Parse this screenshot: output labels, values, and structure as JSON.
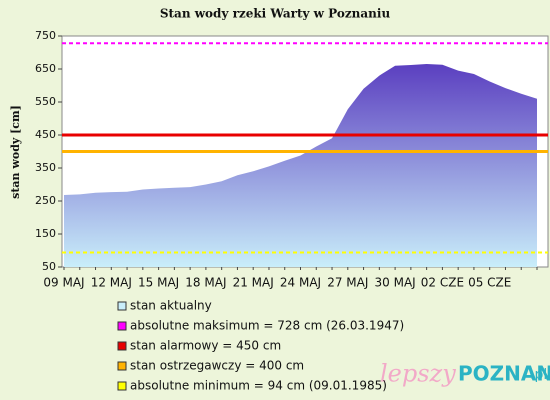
{
  "chart_data": {
    "type": "area",
    "title": "Stan wody rzeki Warty w Poznaniu",
    "y_label": "stan wody [cm]",
    "categories": [
      "09 MAJ",
      null,
      null,
      "12 MAJ",
      null,
      null,
      "15 MAJ",
      null,
      null,
      "18 MAJ",
      null,
      null,
      "21 MAJ",
      null,
      null,
      "24 MAJ",
      null,
      null,
      "27 MAJ",
      null,
      null,
      "30 MAJ",
      null,
      null,
      "02 CZE",
      null,
      null,
      "05 CZE",
      null,
      null,
      null
    ],
    "series": [
      {
        "name": "stan aktualny",
        "color": "#5b3fc0",
        "values": [
          268,
          270,
          275,
          277,
          278,
          285,
          288,
          290,
          292,
          300,
          310,
          328,
          340,
          355,
          372,
          388,
          415,
          440,
          528,
          590,
          630,
          660,
          662,
          665,
          663,
          645,
          635,
          612,
          592,
          575,
          560
        ]
      }
    ],
    "reference_lines": [
      {
        "name": "absolutne maksimum = 728 cm (26.03.1947)",
        "color": "#ff00ff",
        "value": 728,
        "dashed": true
      },
      {
        "name": "stan alarmowy = 450 cm",
        "color": "#e80000",
        "value": 450,
        "dashed": false
      },
      {
        "name": "stan ostrzegawczy = 400 cm",
        "color": "#ffb300",
        "value": 400,
        "dashed": false
      },
      {
        "name": "absolutne minimum = 94 cm (09.01.1985)",
        "color": "#ffff00",
        "value": 94,
        "dashed": true
      }
    ],
    "ylim": [
      50,
      750
    ],
    "yticks": [
      50,
      150,
      250,
      350,
      450,
      550,
      650,
      750
    ],
    "watermark": {
      "part1": "lepszy",
      "part2": "POZNAN",
      "part3": ".pl"
    }
  }
}
